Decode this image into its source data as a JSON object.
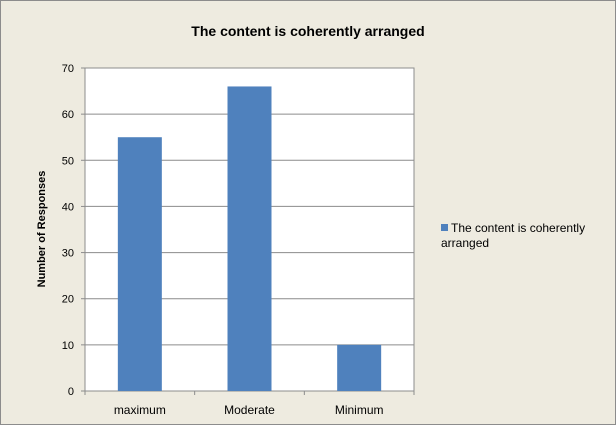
{
  "chart_data": {
    "type": "bar",
    "title": "The content is coherently arranged",
    "xlabel": "",
    "ylabel": "Number of Responses",
    "categories": [
      "maximum",
      "Moderate",
      "Minimum"
    ],
    "series": [
      {
        "name": "The content is coherently arranged",
        "values": [
          55,
          66,
          10
        ],
        "color": "#4f81bd"
      }
    ],
    "ylim": [
      0,
      70
    ],
    "yticks": [
      0,
      10,
      20,
      30,
      40,
      50,
      60,
      70
    ],
    "grid": true,
    "legend_position": "right"
  }
}
